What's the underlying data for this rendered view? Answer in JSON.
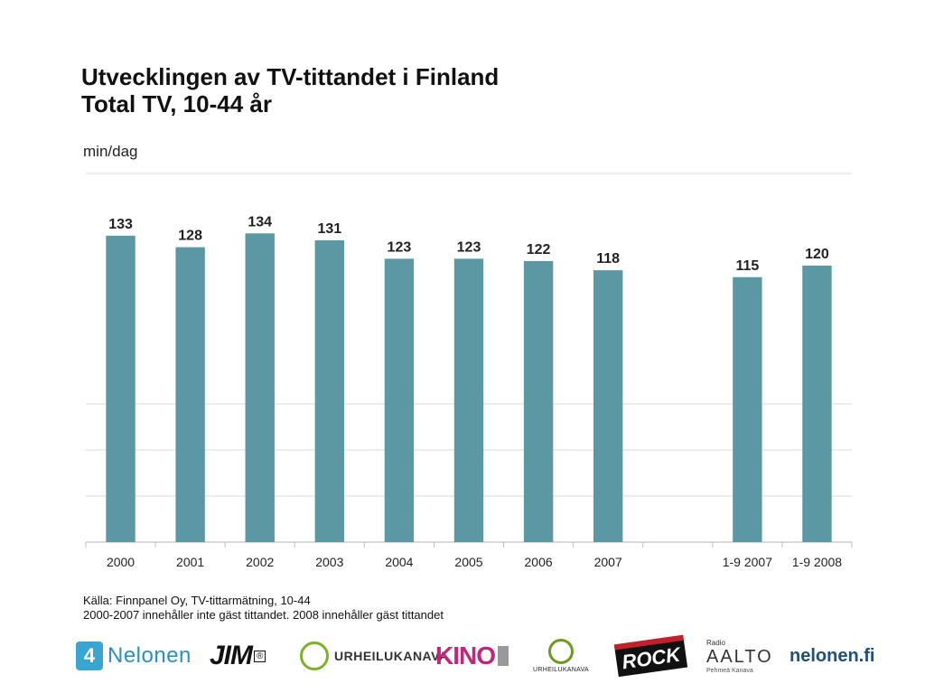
{
  "title_line1": "Utvecklingen av TV-tittandet i Finland",
  "title_line2": "Total TV, 10-44 år",
  "unit_label": "min/dag",
  "chart_data": {
    "type": "bar",
    "title": "Utvecklingen av TV-tittandet i Finland – Total TV, 10-44 år",
    "ylabel": "min/dag",
    "xlabel": "",
    "categories": [
      "2000",
      "2001",
      "2002",
      "2003",
      "2004",
      "2005",
      "2006",
      "2007",
      "",
      "1-9 2007",
      "1-9 2008"
    ],
    "values": [
      133,
      128,
      134,
      131,
      123,
      123,
      122,
      118,
      null,
      115,
      120
    ],
    "ylim": [
      0,
      160
    ],
    "grid": true,
    "data_labels": true,
    "bar_color": "#5b98a3"
  },
  "source_line1": "Källa: Finnpanel Oy, TV-tittarmätning, 10-44",
  "source_line2": "2000-2007 innehåller inte gäst tittandet. 2008 innehåller gäst tittandet",
  "logos": {
    "nelonen_icon": "4",
    "nelonen": "Nelonen",
    "jim": "JIM",
    "jim_mark": "®",
    "urheilukanava": "URHEILUKANAVA",
    "kino": "KINO",
    "urheilukanava_small": "URHEILUKANAVA",
    "radio_rock": "ROCK",
    "radio_aalto_top": "Radio",
    "radio_aalto": "AALTO",
    "radio_aalto_sub": "Pehmeä Kanava",
    "nelonen_fi": "nelonen.fi"
  },
  "colors": {
    "bar": "#5b98a3",
    "grid": "#d9d9d9",
    "nelonen_blue": "#3aa6cf",
    "kino_pink": "#c0267a"
  }
}
